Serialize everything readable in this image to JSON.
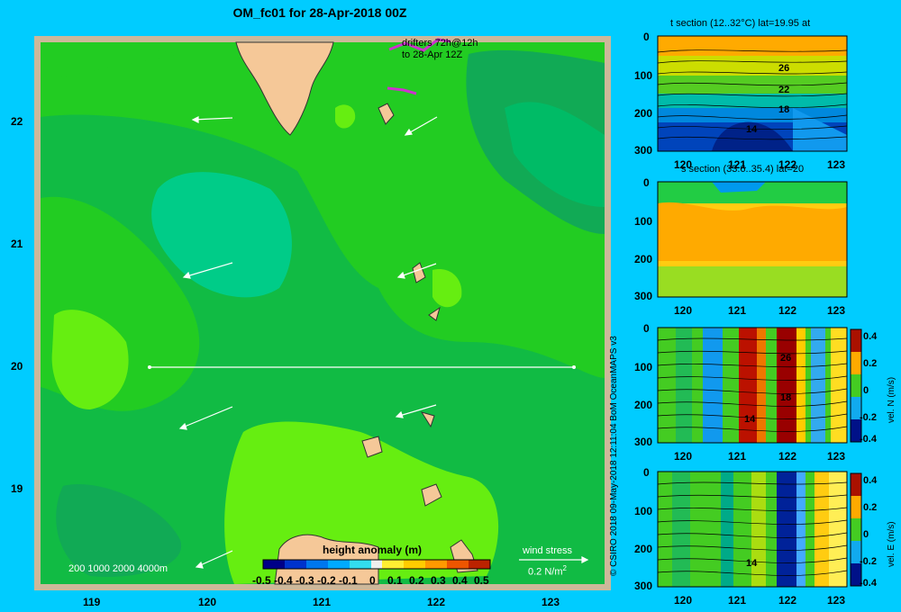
{
  "map": {
    "title": "OM_fc01 for 28-Apr-2018 00Z",
    "x_ticks": [
      "119",
      "120",
      "121",
      "122",
      "123"
    ],
    "y_ticks": [
      "22",
      "21",
      "20",
      "19"
    ],
    "drifters_line1": "drifters 72h@12h",
    "drifters_line2": "to 28-Apr 12Z",
    "depth_legend": "200  1000  2000  4000m",
    "colorbar_title": "height anomaly  (m)",
    "colorbar_ticks": [
      "-0.5",
      "-0.4",
      "-0.3",
      "-0.2",
      "-0.1",
      "0",
      "0.1",
      "0.2",
      "0.3",
      "0.4",
      "0.5"
    ],
    "wind_stress_label": "wind stress",
    "wind_stress_value": "0.2 N/m",
    "wind_stress_sup": "2"
  },
  "credit": "© CSIRO 2018  09-May-2018 12:11:04 BoM OceanMAPS v3",
  "panels": [
    {
      "title": "t section (12..32°C) lat=19.95 at",
      "x_ticks": [
        "120",
        "121",
        "122",
        "123"
      ],
      "y_ticks": [
        "0",
        "100",
        "200",
        "300"
      ],
      "contour_labels": [
        "26",
        "22",
        "18",
        "14"
      ],
      "cbar_label": ""
    },
    {
      "title": "s section (33.6..35.4) lat=20",
      "x_ticks": [
        "120",
        "121",
        "122",
        "123"
      ],
      "y_ticks": [
        "0",
        "100",
        "200",
        "300"
      ],
      "contour_labels": [],
      "cbar_label": ""
    },
    {
      "title": "",
      "x_ticks": [
        "120",
        "121",
        "122",
        "123"
      ],
      "y_ticks": [
        "0",
        "100",
        "200",
        "300"
      ],
      "contour_labels": [
        "26",
        "18",
        "14"
      ],
      "cbar_label": "vel. N (m/s)",
      "cbar_ticks": [
        "0.4",
        "0.2",
        "0",
        "-0.2",
        "-0.4"
      ]
    },
    {
      "title": "",
      "x_ticks": [
        "120",
        "121",
        "122",
        "123"
      ],
      "y_ticks": [
        "0",
        "100",
        "200",
        "300"
      ],
      "contour_labels": [
        "14"
      ],
      "cbar_label": "vel. E (m/s)",
      "cbar_ticks": [
        "0.4",
        "0.2",
        "0",
        "-0.2",
        "-0.4"
      ]
    }
  ],
  "colors": {
    "background": "#00ccff",
    "land": "#f5c898",
    "frame": "#cdb89a",
    "drifter": "#cc33cc"
  }
}
